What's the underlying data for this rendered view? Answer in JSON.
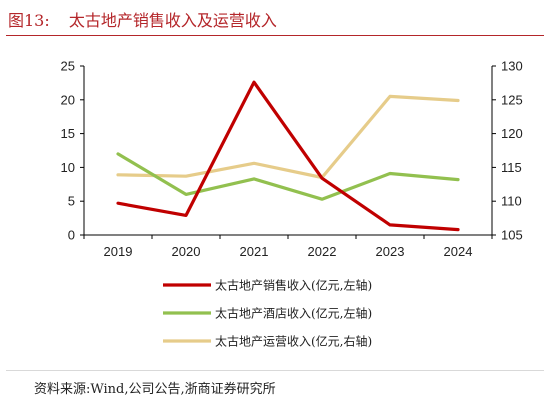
{
  "header": {
    "figure_no": "图13:",
    "title": "太古地产销售收入及运营收入"
  },
  "source": "资料来源:Wind,公司公告,浙商证券研究所",
  "chart_data": {
    "type": "line",
    "title": "太古地产销售收入及运营收入",
    "categories": [
      "2019",
      "2020",
      "2021",
      "2022",
      "2023",
      "2024"
    ],
    "left_axis": {
      "range": [
        0,
        25
      ],
      "ticks": [
        "0",
        "5",
        "10",
        "15",
        "20",
        "25"
      ]
    },
    "right_axis": {
      "range": [
        105,
        130
      ],
      "ticks": [
        "105",
        "110",
        "115",
        "120",
        "125",
        "130"
      ]
    },
    "legend_position": "bottom",
    "grid": false,
    "series": [
      {
        "name": "太古地产销售收入(亿元,左轴)",
        "axis": "left",
        "color": "#c00000",
        "values": [
          4.7,
          2.9,
          22.6,
          8.4,
          1.5,
          0.8
        ]
      },
      {
        "name": "太古地产酒店收入(亿元,左轴)",
        "axis": "left",
        "color": "#92c04f",
        "values": [
          12.0,
          6.0,
          8.3,
          5.3,
          9.1,
          8.2
        ]
      },
      {
        "name": "太古地产运营收入(亿元,右轴)",
        "axis": "right",
        "color": "#e6cc8a",
        "values": [
          113.9,
          113.7,
          115.6,
          113.5,
          125.5,
          124.9
        ]
      }
    ]
  }
}
